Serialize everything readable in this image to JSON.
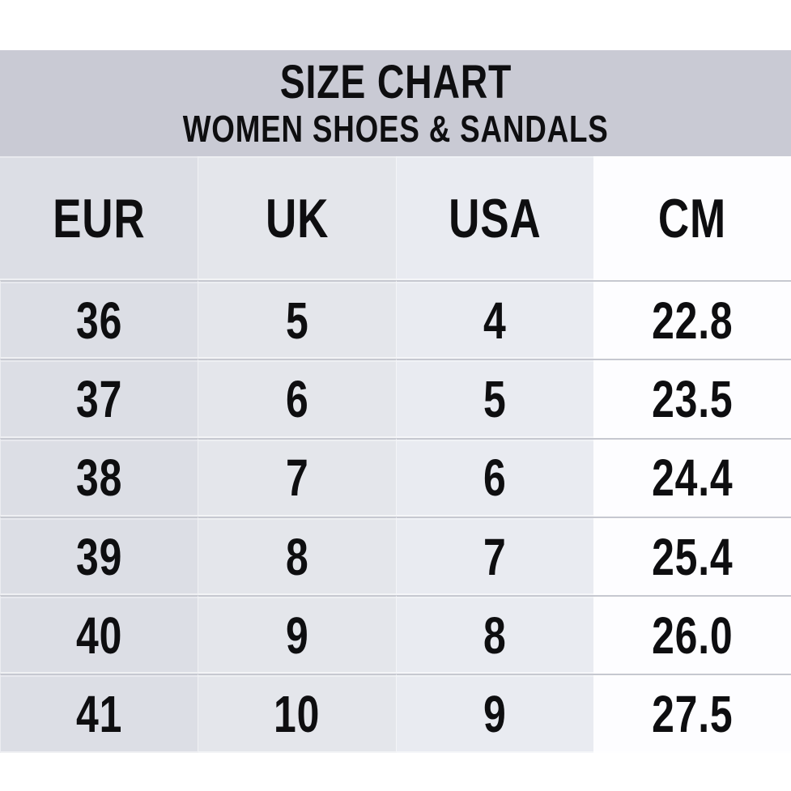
{
  "title": {
    "line1": "SIZE CHART",
    "line2": "WOMEN SHOES & SANDALS"
  },
  "chart_data": {
    "type": "table",
    "title": "SIZE CHART",
    "subtitle": "WOMEN SHOES & SANDALS",
    "columns": [
      "EUR",
      "UK",
      "USA",
      "CM"
    ],
    "rows": [
      [
        "36",
        "5",
        "4",
        "22.8"
      ],
      [
        "37",
        "6",
        "5",
        "23.5"
      ],
      [
        "38",
        "7",
        "6",
        "24.4"
      ],
      [
        "39",
        "8",
        "7",
        "25.4"
      ],
      [
        "40",
        "9",
        "8",
        "26.0"
      ],
      [
        "41",
        "10",
        "9",
        "27.5"
      ]
    ]
  },
  "colors": {
    "title_band": "#c9cad4",
    "col_eur": "#dcdee5",
    "col_uk": "#e4e6eb",
    "col_usa": "#e9ebf1",
    "col_cm": "#fdfdff",
    "row_separator": "#c6c8d0",
    "text": "#0e0e10",
    "page_background": "#ffffff"
  }
}
